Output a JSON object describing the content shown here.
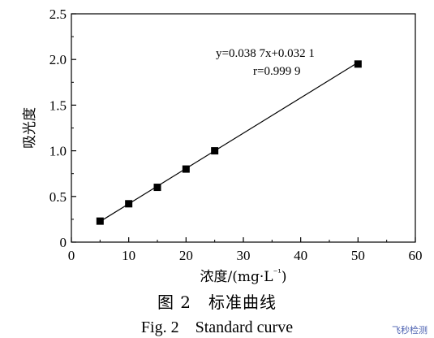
{
  "chart_data": {
    "type": "scatter",
    "xlabel": "浓度/(mg·L⁻¹)",
    "ylabel": "吸光度",
    "xlim": [
      0,
      60
    ],
    "ylim": [
      0,
      2.5
    ],
    "x_ticks": [
      "0",
      "10",
      "20",
      "30",
      "40",
      "50",
      "60"
    ],
    "y_ticks": [
      "0",
      "0.5",
      "1.0",
      "1.5",
      "2.0",
      "2.5"
    ],
    "grid": false,
    "x": [
      5,
      10,
      15,
      20,
      25,
      50
    ],
    "y": [
      0.23,
      0.42,
      0.6,
      0.8,
      1.0,
      1.95
    ],
    "fit_line": {
      "slope": 0.0387,
      "intercept": 0.0321,
      "x_range": [
        5,
        50
      ]
    },
    "annotations": {
      "equation": "y=0.038 7x+0.032 1",
      "r": "r=0.999 9"
    }
  },
  "caption_cn": "图 2　标准曲线",
  "caption_en": "Fig. 2　Standard curve",
  "watermark": "飞秒检测"
}
